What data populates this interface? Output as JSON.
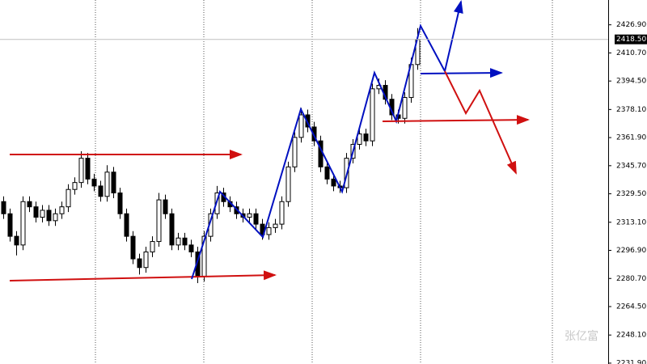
{
  "chart_data": {
    "type": "candlestick",
    "categories": [
      null,
      null,
      null,
      null,
      null,
      null,
      null,
      null,
      null,
      null,
      null,
      null,
      null,
      null,
      null,
      null,
      null,
      null,
      null,
      null,
      null,
      null,
      null,
      null,
      null,
      null,
      null,
      null,
      null,
      null,
      null,
      null,
      null,
      null,
      null,
      null,
      null,
      null,
      null,
      null,
      null,
      null,
      null,
      null,
      null,
      null,
      null,
      null,
      null,
      null,
      null,
      null,
      null,
      null,
      null,
      null,
      null,
      null,
      null,
      null,
      null,
      null,
      null,
      null,
      null
    ],
    "open": [
      2325,
      2318,
      2305,
      2300,
      2325,
      2322,
      2316,
      2320,
      2314,
      2318,
      2322,
      2332,
      2336,
      2350,
      2338,
      2334,
      2328,
      2342,
      2330,
      2318,
      2305,
      2292,
      2287,
      2296,
      2302,
      2326,
      2318,
      2300,
      2304,
      2300,
      2296,
      2282,
      2305,
      2318,
      2330,
      2325,
      2322,
      2318,
      2316,
      2318,
      2312,
      2306,
      2310,
      2312,
      2325,
      2345,
      2362,
      2375,
      2368,
      2360,
      2345,
      2338,
      2334,
      2333,
      2350,
      2358,
      2364,
      2360,
      2390,
      2392,
      2384,
      2375,
      2373,
      2385,
      2404
    ],
    "high": [
      2328,
      2321,
      2308,
      2328,
      2328,
      2325,
      2323,
      2323,
      2321,
      2325,
      2335,
      2339,
      2354,
      2353,
      2341,
      2337,
      2346,
      2345,
      2333,
      2321,
      2308,
      2295,
      2299,
      2305,
      2330,
      2329,
      2321,
      2307,
      2307,
      2303,
      2299,
      2308,
      2321,
      2334,
      2333,
      2328,
      2325,
      2321,
      2321,
      2321,
      2315,
      2313,
      2315,
      2328,
      2348,
      2365,
      2379,
      2378,
      2371,
      2363,
      2348,
      2341,
      2337,
      2353,
      2361,
      2367,
      2367,
      2393,
      2396,
      2395,
      2387,
      2378,
      2388,
      2408,
      2425
    ],
    "low": [
      2315,
      2302,
      2294,
      2297,
      2319,
      2313,
      2313,
      2311,
      2311,
      2315,
      2319,
      2329,
      2333,
      2335,
      2331,
      2325,
      2325,
      2327,
      2315,
      2302,
      2289,
      2283,
      2284,
      2293,
      2299,
      2315,
      2297,
      2297,
      2297,
      2293,
      2278,
      2279,
      2302,
      2315,
      2322,
      2319,
      2315,
      2313,
      2313,
      2309,
      2303,
      2303,
      2307,
      2309,
      2322,
      2342,
      2359,
      2365,
      2357,
      2342,
      2335,
      2331,
      2330,
      2330,
      2347,
      2355,
      2357,
      2357,
      2387,
      2381,
      2372,
      2370,
      2370,
      2382,
      2401
    ],
    "close": [
      2318,
      2305,
      2300,
      2325,
      2322,
      2316,
      2320,
      2314,
      2318,
      2322,
      2332,
      2336,
      2350,
      2338,
      2334,
      2328,
      2342,
      2330,
      2318,
      2305,
      2292,
      2287,
      2296,
      2302,
      2326,
      2318,
      2300,
      2304,
      2300,
      2296,
      2282,
      2305,
      2318,
      2330,
      2325,
      2322,
      2318,
      2316,
      2318,
      2312,
      2306,
      2310,
      2312,
      2325,
      2345,
      2362,
      2375,
      2368,
      2360,
      2345,
      2338,
      2334,
      2333,
      2350,
      2358,
      2364,
      2360,
      2390,
      2392,
      2384,
      2375,
      2373,
      2385,
      2404,
      2418.5
    ],
    "up_color": "#ffffff",
    "down_color": "#000000",
    "ylim": [
      2231.4,
      2441.2
    ],
    "yticks": [
      {
        "value": 2231.9,
        "label": "2231.90"
      },
      {
        "value": 2248.1,
        "label": "2248.10"
      },
      {
        "value": 2264.5,
        "label": "2264.50"
      },
      {
        "value": 2280.7,
        "label": "2280.70"
      },
      {
        "value": 2296.9,
        "label": "2296.90"
      },
      {
        "value": 2313.1,
        "label": "2313.10"
      },
      {
        "value": 2329.5,
        "label": "2329.50"
      },
      {
        "value": 2345.7,
        "label": "2345.70"
      },
      {
        "value": 2361.9,
        "label": "2361.90"
      },
      {
        "value": 2378.1,
        "label": "2378.10"
      },
      {
        "value": 2394.5,
        "label": "2394.50"
      },
      {
        "value": 2410.7,
        "label": "2410.70"
      },
      {
        "value": 2426.9,
        "label": "2426.90"
      }
    ],
    "last_price": {
      "value": 2418.5,
      "label": "2418.50"
    },
    "watermark": "张亿富"
  }
}
